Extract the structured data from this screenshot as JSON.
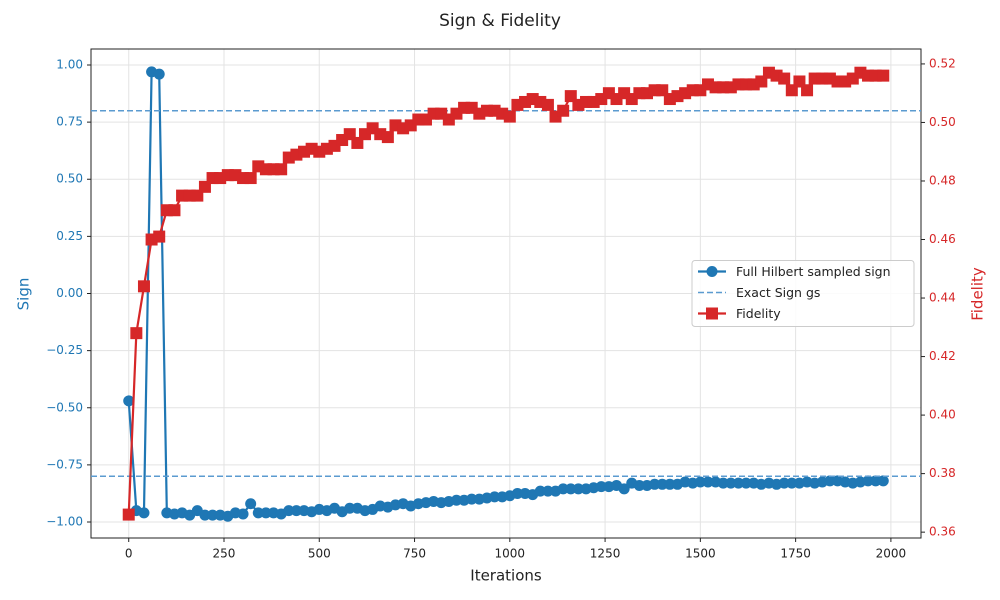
{
  "chart_data": {
    "type": "line",
    "title": "Sign & Fidelity",
    "xlabel": "Iterations",
    "ylabel": "Sign",
    "y2label": "Fidelity",
    "x": [
      0,
      20,
      40,
      60,
      80,
      100,
      120,
      140,
      160,
      180,
      200,
      220,
      240,
      260,
      280,
      300,
      320,
      340,
      360,
      380,
      400,
      420,
      440,
      460,
      480,
      500,
      520,
      540,
      560,
      580,
      600,
      620,
      640,
      660,
      680,
      700,
      720,
      740,
      760,
      780,
      800,
      820,
      840,
      860,
      880,
      900,
      920,
      940,
      960,
      980,
      1000,
      1020,
      1040,
      1060,
      1080,
      1100,
      1120,
      1140,
      1160,
      1180,
      1200,
      1220,
      1240,
      1260,
      1280,
      1300,
      1320,
      1340,
      1360,
      1380,
      1400,
      1420,
      1440,
      1460,
      1480,
      1500,
      1520,
      1540,
      1560,
      1580,
      1600,
      1620,
      1640,
      1660,
      1680,
      1700,
      1720,
      1740,
      1760,
      1780,
      1800,
      1820,
      1840,
      1860,
      1880,
      1900,
      1920,
      1940,
      1960,
      1980
    ],
    "series": [
      {
        "name": "Full Hilbert sampled sign",
        "color": "#1f77b4",
        "marker": "circle",
        "axis": "y",
        "values": [
          -0.47,
          -0.95,
          -0.96,
          0.97,
          0.96,
          -0.96,
          -0.965,
          -0.96,
          -0.97,
          -0.95,
          -0.97,
          -0.97,
          -0.97,
          -0.975,
          -0.96,
          -0.965,
          -0.92,
          -0.96,
          -0.96,
          -0.96,
          -0.965,
          -0.95,
          -0.95,
          -0.95,
          -0.955,
          -0.945,
          -0.95,
          -0.94,
          -0.955,
          -0.94,
          -0.94,
          -0.95,
          -0.945,
          -0.93,
          -0.935,
          -0.925,
          -0.92,
          -0.93,
          -0.92,
          -0.915,
          -0.91,
          -0.915,
          -0.91,
          -0.905,
          -0.905,
          -0.9,
          -0.9,
          -0.895,
          -0.89,
          -0.89,
          -0.885,
          -0.875,
          -0.875,
          -0.88,
          -0.865,
          -0.865,
          -0.865,
          -0.855,
          -0.855,
          -0.855,
          -0.855,
          -0.85,
          -0.845,
          -0.845,
          -0.84,
          -0.855,
          -0.83,
          -0.84,
          -0.84,
          -0.835,
          -0.835,
          -0.835,
          -0.835,
          -0.825,
          -0.83,
          -0.825,
          -0.825,
          -0.825,
          -0.83,
          -0.83,
          -0.83,
          -0.83,
          -0.83,
          -0.835,
          -0.83,
          -0.835,
          -0.83,
          -0.83,
          -0.83,
          -0.825,
          -0.83,
          -0.825,
          -0.82,
          -0.82,
          -0.825,
          -0.83,
          -0.825,
          -0.82,
          -0.82,
          -0.82
        ]
      },
      {
        "name": "Exact Sign gs",
        "color": "#5b9bd0",
        "style": "dashed",
        "axis": "y",
        "levels": [
          0.8,
          -0.8
        ]
      },
      {
        "name": "Fidelity",
        "color": "#d62728",
        "marker": "square",
        "axis": "y2",
        "values": [
          0.366,
          0.428,
          0.444,
          0.46,
          0.461,
          0.47,
          0.47,
          0.475,
          0.475,
          0.475,
          0.478,
          0.481,
          0.481,
          0.482,
          0.482,
          0.481,
          0.481,
          0.485,
          0.484,
          0.484,
          0.484,
          0.488,
          0.489,
          0.49,
          0.491,
          0.49,
          0.491,
          0.492,
          0.494,
          0.496,
          0.493,
          0.496,
          0.498,
          0.496,
          0.495,
          0.499,
          0.498,
          0.499,
          0.501,
          0.501,
          0.503,
          0.503,
          0.501,
          0.503,
          0.505,
          0.505,
          0.503,
          0.504,
          0.504,
          0.503,
          0.502,
          0.506,
          0.507,
          0.508,
          0.507,
          0.506,
          0.502,
          0.504,
          0.509,
          0.506,
          0.507,
          0.507,
          0.508,
          0.51,
          0.508,
          0.51,
          0.508,
          0.51,
          0.51,
          0.511,
          0.511,
          0.508,
          0.509,
          0.51,
          0.511,
          0.511,
          0.513,
          0.512,
          0.512,
          0.512,
          0.513,
          0.513,
          0.513,
          0.514,
          0.517,
          0.516,
          0.515,
          0.511,
          0.514,
          0.511,
          0.515,
          0.515,
          0.515,
          0.514,
          0.514,
          0.515,
          0.517,
          0.516,
          0.516,
          0.516
        ]
      }
    ],
    "xlim": [
      -99,
      2079
    ],
    "xticks": [
      0,
      250,
      500,
      750,
      1000,
      1250,
      1500,
      1750,
      2000
    ],
    "ylim": [
      -1.07,
      1.07
    ],
    "yticks": [
      {
        "value": -1,
        "label": "−1.00"
      },
      {
        "value": -0.75,
        "label": "−0.75"
      },
      {
        "value": -0.5,
        "label": "−0.50"
      },
      {
        "value": -0.25,
        "label": "−0.25"
      },
      {
        "value": 0,
        "label": "0.00"
      },
      0.25,
      {
        "value": 0.5,
        "label": "0.50"
      },
      0.75,
      {
        "value": 1,
        "label": "1.00"
      }
    ],
    "y2lim": [
      0.358,
      0.5251
    ],
    "y2ticks": [
      0.36,
      0.38,
      {
        "value": 0.4,
        "label": "0.40"
      },
      0.42,
      0.44,
      0.46,
      0.48,
      {
        "value": 0.5,
        "label": "0.50"
      },
      0.52
    ],
    "grid": true,
    "legend": "center right"
  }
}
